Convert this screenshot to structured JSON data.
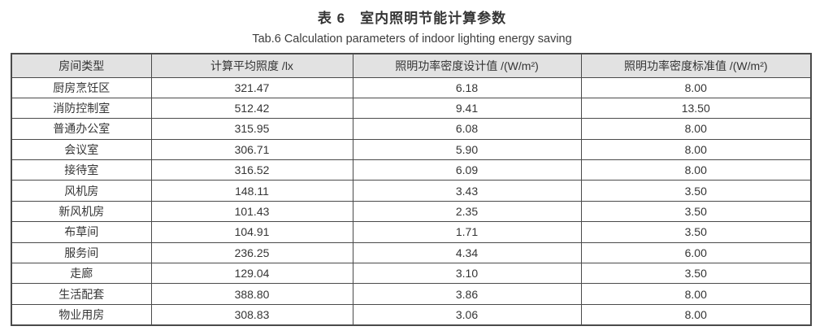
{
  "caption": {
    "title_zh": "表 6　室内照明节能计算参数",
    "title_en": "Tab.6 Calculation parameters of indoor lighting energy saving"
  },
  "colors": {
    "header_bg": "#e2e2e2",
    "border": "#4a4a4a",
    "text": "#353535"
  },
  "chart_data": {
    "type": "table",
    "title": "表 6 室内照明节能计算参数 / Tab.6 Calculation parameters of indoor lighting energy saving",
    "columns": [
      "房间类型",
      "计算平均照度 /lx",
      "照明功率密度设计值 /(W/m²)",
      "照明功率密度标准值 /(W/m²)"
    ],
    "rows": [
      [
        "厨房烹饪区",
        "321.47",
        "6.18",
        "8.00"
      ],
      [
        "消防控制室",
        "512.42",
        "9.41",
        "13.50"
      ],
      [
        "普通办公室",
        "315.95",
        "6.08",
        "8.00"
      ],
      [
        "会议室",
        "306.71",
        "5.90",
        "8.00"
      ],
      [
        "接待室",
        "316.52",
        "6.09",
        "8.00"
      ],
      [
        "风机房",
        "148.11",
        "3.43",
        "3.50"
      ],
      [
        "新风机房",
        "101.43",
        "2.35",
        "3.50"
      ],
      [
        "布草间",
        "104.91",
        "1.71",
        "3.50"
      ],
      [
        "服务间",
        "236.25",
        "4.34",
        "6.00"
      ],
      [
        "走廊",
        "129.04",
        "3.10",
        "3.50"
      ],
      [
        "生活配套",
        "388.80",
        "3.86",
        "8.00"
      ],
      [
        "物业用房",
        "308.83",
        "3.06",
        "8.00"
      ]
    ]
  }
}
